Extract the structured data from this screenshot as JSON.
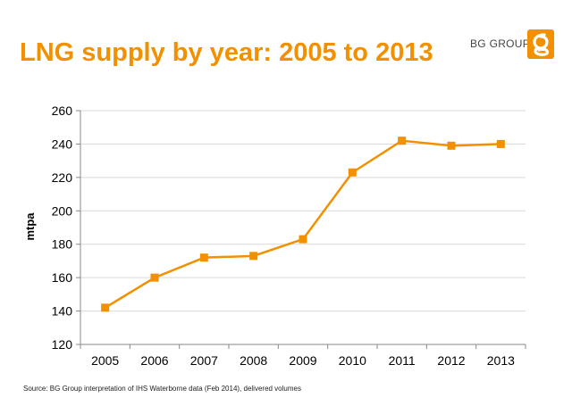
{
  "header": {
    "title": "LNG supply by year: 2005 to 2013",
    "brand": "BG GROUP",
    "brand_color": "#f39000"
  },
  "logo": {
    "icon": "bg-group-logo-icon"
  },
  "footer": {
    "source": "Source: BG Group interpretation of IHS Waterborne data (Feb 2014), delivered volumes"
  },
  "chart_data": {
    "type": "line",
    "title": "LNG supply by year: 2005 to 2013",
    "xlabel": "",
    "ylabel": "mtpa",
    "x": [
      "2005",
      "2006",
      "2007",
      "2008",
      "2009",
      "2010",
      "2011",
      "2012",
      "2013"
    ],
    "series": [
      {
        "color": "#f39000",
        "values": [
          142,
          160,
          172,
          173,
          183,
          223,
          242,
          239,
          240
        ]
      }
    ],
    "ylim": [
      120,
      260
    ],
    "yticks": [
      120,
      140,
      160,
      180,
      200,
      220,
      240,
      260
    ],
    "grid": true,
    "legend": "none",
    "marker": "square"
  }
}
